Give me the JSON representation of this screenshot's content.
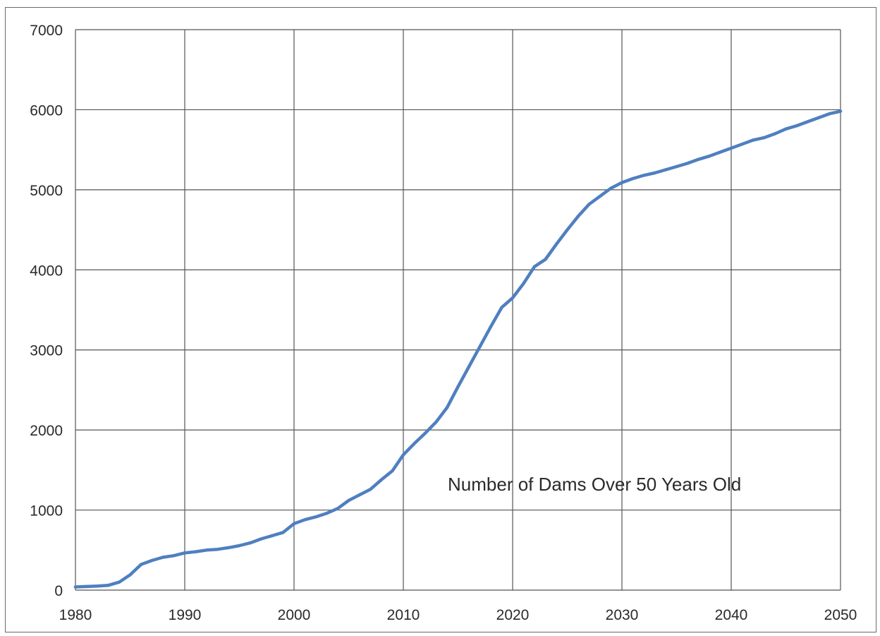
{
  "chart_data": {
    "type": "line",
    "title": "",
    "xlabel": "",
    "ylabel": "",
    "xlim": [
      1980,
      2050
    ],
    "ylim": [
      0,
      7000
    ],
    "x_ticks": [
      1980,
      1990,
      2000,
      2010,
      2020,
      2030,
      2040,
      2050
    ],
    "y_ticks": [
      0,
      1000,
      2000,
      3000,
      4000,
      5000,
      6000,
      7000
    ],
    "grid": true,
    "legend": "none",
    "annotations": [
      {
        "text": "Number of Dams Over 50 Years Old"
      }
    ],
    "series": [
      {
        "color": "#4f7fc0",
        "points": [
          [
            1980,
            40
          ],
          [
            1981,
            45
          ],
          [
            1982,
            50
          ],
          [
            1983,
            60
          ],
          [
            1984,
            100
          ],
          [
            1985,
            190
          ],
          [
            1986,
            320
          ],
          [
            1987,
            370
          ],
          [
            1988,
            410
          ],
          [
            1989,
            430
          ],
          [
            1990,
            465
          ],
          [
            1991,
            480
          ],
          [
            1992,
            500
          ],
          [
            1993,
            510
          ],
          [
            1994,
            530
          ],
          [
            1995,
            555
          ],
          [
            1996,
            590
          ],
          [
            1997,
            640
          ],
          [
            1998,
            680
          ],
          [
            1999,
            720
          ],
          [
            2000,
            830
          ],
          [
            2001,
            880
          ],
          [
            2002,
            915
          ],
          [
            2003,
            960
          ],
          [
            2004,
            1020
          ],
          [
            2005,
            1120
          ],
          [
            2006,
            1190
          ],
          [
            2007,
            1260
          ],
          [
            2008,
            1380
          ],
          [
            2009,
            1490
          ],
          [
            2010,
            1690
          ],
          [
            2011,
            1830
          ],
          [
            2012,
            1960
          ],
          [
            2013,
            2100
          ],
          [
            2014,
            2280
          ],
          [
            2015,
            2540
          ],
          [
            2016,
            2790
          ],
          [
            2017,
            3040
          ],
          [
            2018,
            3290
          ],
          [
            2019,
            3530
          ],
          [
            2020,
            3650
          ],
          [
            2021,
            3830
          ],
          [
            2022,
            4040
          ],
          [
            2023,
            4130
          ],
          [
            2024,
            4320
          ],
          [
            2025,
            4500
          ],
          [
            2026,
            4670
          ],
          [
            2027,
            4820
          ],
          [
            2028,
            4920
          ],
          [
            2029,
            5020
          ],
          [
            2030,
            5090
          ],
          [
            2031,
            5140
          ],
          [
            2032,
            5180
          ],
          [
            2033,
            5210
          ],
          [
            2034,
            5250
          ],
          [
            2035,
            5290
          ],
          [
            2036,
            5330
          ],
          [
            2037,
            5380
          ],
          [
            2038,
            5420
          ],
          [
            2039,
            5470
          ],
          [
            2040,
            5520
          ],
          [
            2041,
            5570
          ],
          [
            2042,
            5620
          ],
          [
            2043,
            5650
          ],
          [
            2044,
            5700
          ],
          [
            2045,
            5760
          ],
          [
            2046,
            5800
          ],
          [
            2047,
            5850
          ],
          [
            2048,
            5900
          ],
          [
            2049,
            5950
          ],
          [
            2050,
            5980
          ]
        ]
      }
    ]
  }
}
